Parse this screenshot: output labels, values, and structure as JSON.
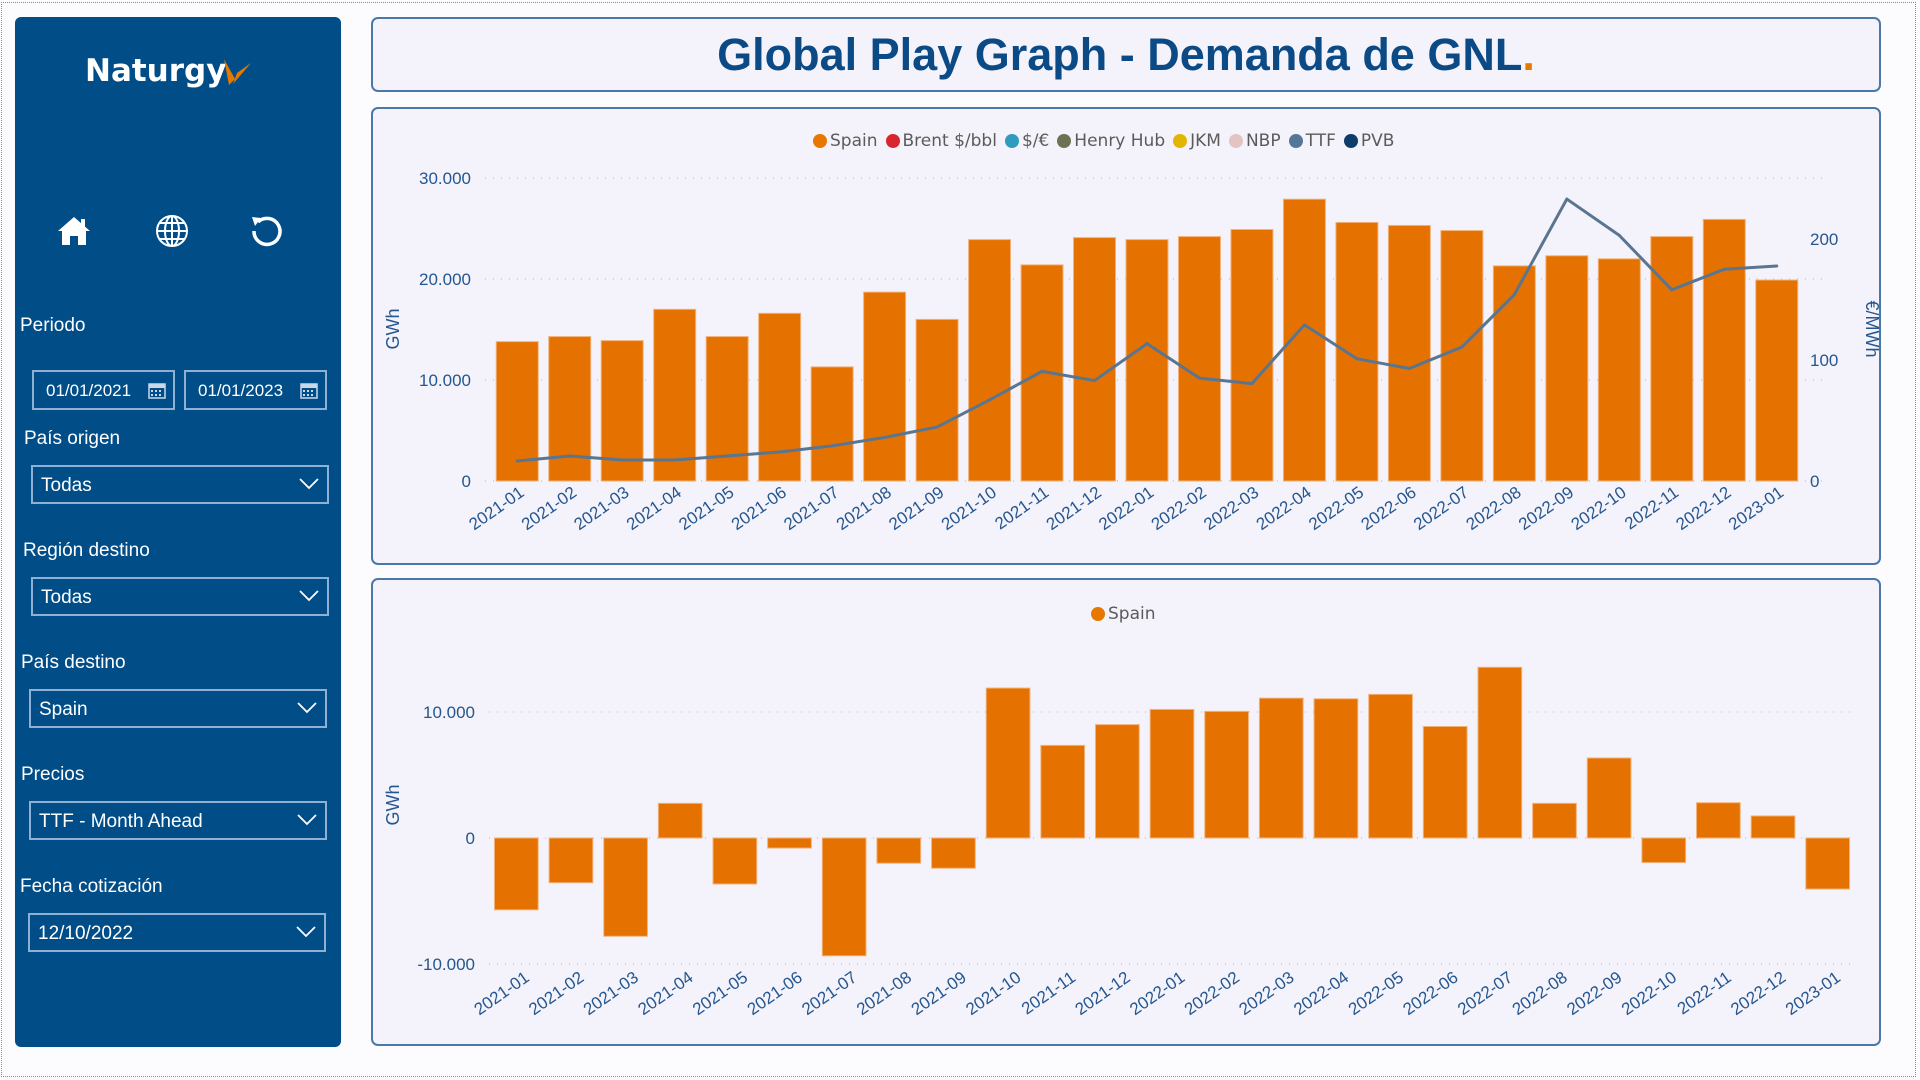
{
  "app": {
    "brand": "Naturgy",
    "brand_accent": "#e87700"
  },
  "sidebar": {
    "nav": [
      {
        "name": "home-icon",
        "label": "Home"
      },
      {
        "name": "globe-icon",
        "label": "Global"
      },
      {
        "name": "reset-icon",
        "label": "Reset"
      }
    ],
    "periodo": {
      "label": "Periodo",
      "start": "01/01/2021",
      "end": "01/01/2023"
    },
    "filters": [
      {
        "label": "País origen",
        "value": "Todas"
      },
      {
        "label": "Región destino",
        "value": "Todas"
      },
      {
        "label": "País destino",
        "value": "Spain"
      },
      {
        "label": "Precios",
        "value": "TTF - Month Ahead"
      },
      {
        "label": "Fecha cotización",
        "value": "12/10/2022"
      }
    ]
  },
  "header": {
    "title": "Global Play Graph - Demanda de GNL",
    "title_dot": "."
  },
  "colors": {
    "bar": "#e57200",
    "line": "#5a7590",
    "axis_text": "#24568f",
    "grid": "#c8c8c8"
  },
  "chart_data": [
    {
      "type": "bar",
      "subtype": "bar+line dual-axis",
      "title": "",
      "legend": [
        {
          "name": "Spain",
          "color": "#e87700"
        },
        {
          "name": "Brent $/bbl",
          "color": "#d9252d"
        },
        {
          "name": "$/€",
          "color": "#2e9bbf"
        },
        {
          "name": "Henry Hub",
          "color": "#6b7352"
        },
        {
          "name": "JKM",
          "color": "#e2b600"
        },
        {
          "name": "NBP",
          "color": "#e4c3c3"
        },
        {
          "name": "TTF",
          "color": "#557797"
        },
        {
          "name": "PVB",
          "color": "#0d3d6b"
        }
      ],
      "legend_position": "top-center",
      "categories": [
        "2021-01",
        "2021-02",
        "2021-03",
        "2021-04",
        "2021-05",
        "2021-06",
        "2021-07",
        "2021-08",
        "2021-09",
        "2021-10",
        "2021-11",
        "2021-12",
        "2022-01",
        "2022-02",
        "2022-03",
        "2022-04",
        "2022-05",
        "2022-06",
        "2022-07",
        "2022-08",
        "2022-09",
        "2022-10",
        "2022-11",
        "2022-12",
        "2023-01"
      ],
      "series": [
        {
          "name": "Spain",
          "type": "bar",
          "axis": "left",
          "values": [
            13800,
            14300,
            13900,
            17000,
            14300,
            16600,
            11300,
            18700,
            16000,
            23900,
            21400,
            24100,
            23900,
            24200,
            24900,
            27900,
            25600,
            25300,
            24800,
            21300,
            22300,
            22000,
            24200,
            25900,
            19900
          ]
        },
        {
          "name": "TTF",
          "type": "line",
          "axis": "right",
          "values": [
            16.5,
            20.7,
            17.4,
            17.4,
            20.7,
            24,
            29,
            36,
            44.6,
            67,
            90.6,
            83,
            113.5,
            85,
            80.5,
            129,
            101,
            93,
            110.7,
            154,
            233,
            203,
            158,
            175,
            177.7
          ]
        }
      ],
      "xlabel": "",
      "ylabel": "GWh",
      "y2label": "€/MWh",
      "ylim": [
        0,
        30000
      ],
      "yticks": [
        "0",
        "10.000",
        "20.000",
        "30.000"
      ],
      "y2lim": [
        0,
        250
      ],
      "y2ticks": [
        "0",
        "100",
        "200"
      ],
      "grid": true
    },
    {
      "type": "bar",
      "title": "",
      "legend": [
        {
          "name": "Spain",
          "color": "#e87700"
        }
      ],
      "legend_position": "top-center",
      "categories": [
        "2021-01",
        "2021-02",
        "2021-03",
        "2021-04",
        "2021-05",
        "2021-06",
        "2021-07",
        "2021-08",
        "2021-09",
        "2021-10",
        "2021-11",
        "2021-12",
        "2022-01",
        "2022-02",
        "2022-03",
        "2022-04",
        "2022-05",
        "2022-06",
        "2022-07",
        "2022-08",
        "2022-09",
        "2022-10",
        "2022-11",
        "2022-12",
        "2023-01"
      ],
      "series": [
        {
          "name": "Spain",
          "values": [
            -5700,
            -3550,
            -7800,
            2750,
            -3650,
            -800,
            -9350,
            -2000,
            -2400,
            11900,
            7350,
            9000,
            10200,
            10050,
            11100,
            11050,
            11400,
            8850,
            13550,
            2750,
            6350,
            -1950,
            2800,
            1750,
            -4050
          ]
        }
      ],
      "xlabel": "",
      "ylabel": "GWh",
      "ylim": [
        -10000,
        13800
      ],
      "yticks": [
        "-10.000",
        "0",
        "10.000"
      ],
      "grid": true
    }
  ]
}
